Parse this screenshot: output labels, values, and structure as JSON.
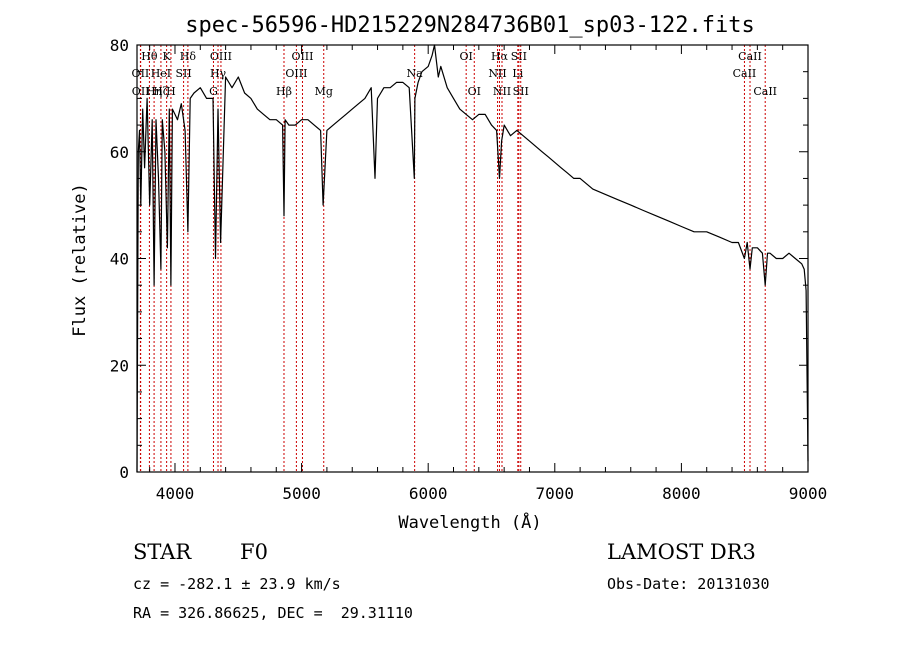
{
  "chart_data": {
    "type": "line",
    "title": "spec-56596-HD215229N284736B01_sp03-122.fits",
    "xlabel": "Wavelength (Å)",
    "ylabel": "Flux (relative)",
    "xlim": [
      3700,
      9000
    ],
    "ylim": [
      0,
      80
    ],
    "xticks": [
      4000,
      5000,
      6000,
      7000,
      8000,
      9000
    ],
    "yticks": [
      0,
      20,
      40,
      60,
      80
    ],
    "series": [
      {
        "name": "spectrum",
        "x": [
          3700,
          3710,
          3720,
          3730,
          3745,
          3760,
          3780,
          3800,
          3820,
          3835,
          3850,
          3870,
          3889,
          3900,
          3920,
          3940,
          3955,
          3968,
          3980,
          4000,
          4020,
          4050,
          4080,
          4102,
          4120,
          4150,
          4200,
          4250,
          4300,
          4320,
          4340,
          4360,
          4400,
          4450,
          4500,
          4550,
          4600,
          4650,
          4700,
          4750,
          4800,
          4850,
          4861,
          4870,
          4900,
          4950,
          5000,
          5050,
          5100,
          5150,
          5170,
          5200,
          5250,
          5300,
          5350,
          5400,
          5450,
          5500,
          5550,
          5580,
          5600,
          5650,
          5700,
          5750,
          5800,
          5850,
          5890,
          5895,
          5920,
          5950,
          6000,
          6030,
          6050,
          6080,
          6100,
          6150,
          6200,
          6250,
          6300,
          6350,
          6400,
          6450,
          6500,
          6540,
          6563,
          6580,
          6600,
          6650,
          6700,
          6750,
          6800,
          6850,
          6900,
          6950,
          7000,
          7050,
          7100,
          7150,
          7200,
          7300,
          7400,
          7500,
          7600,
          7700,
          7800,
          7900,
          8000,
          8100,
          8200,
          8300,
          8400,
          8450,
          8498,
          8520,
          8542,
          8560,
          8600,
          8640,
          8662,
          8680,
          8700,
          8750,
          8800,
          8850,
          8900,
          8950,
          8970,
          8985,
          9000
        ],
        "y": [
          0,
          60,
          64,
          50,
          68,
          57,
          70,
          50,
          66,
          35,
          66,
          55,
          38,
          66,
          60,
          42,
          68,
          35,
          68,
          67,
          66,
          69,
          64,
          45,
          70,
          71,
          72,
          70,
          70,
          40,
          68,
          43,
          74,
          72,
          74,
          71,
          70,
          68,
          67,
          66,
          66,
          65,
          48,
          66,
          65,
          65,
          66,
          66,
          65,
          64,
          50,
          64,
          65,
          66,
          67,
          68,
          69,
          70,
          72,
          55,
          70,
          72,
          72,
          73,
          73,
          72,
          55,
          70,
          73,
          75,
          76,
          78,
          80,
          74,
          76,
          72,
          70,
          68,
          67,
          66,
          67,
          67,
          65,
          64,
          55,
          62,
          65,
          63,
          64,
          63,
          62,
          61,
          60,
          59,
          58,
          57,
          56,
          55,
          55,
          53,
          52,
          51,
          50,
          49,
          48,
          47,
          46,
          45,
          45,
          44,
          43,
          43,
          40,
          43,
          38,
          42,
          42,
          41,
          35,
          41,
          41,
          40,
          40,
          41,
          40,
          39,
          38,
          34,
          2
        ]
      }
    ],
    "spectral_lines": [
      {
        "label": "Hθ",
        "wavelength": 3798,
        "row": 1
      },
      {
        "label": "OII",
        "wavelength": 3727,
        "row": 2
      },
      {
        "label": "OII",
        "wavelength": 3729,
        "row": 3
      },
      {
        "label": "HeI",
        "wavelength": 3889,
        "row": 2
      },
      {
        "label": "Hη",
        "wavelength": 3835,
        "row": 3
      },
      {
        "label": "Hζ",
        "wavelength": 3889,
        "row": 3
      },
      {
        "label": "K",
        "wavelength": 3934,
        "row": 1
      },
      {
        "label": "H",
        "wavelength": 3968,
        "row": 3
      },
      {
        "label": "SII",
        "wavelength": 4068,
        "row": 2
      },
      {
        "label": "Hδ",
        "wavelength": 4102,
        "row": 1
      },
      {
        "label": "OIII",
        "wavelength": 4363,
        "row": 1
      },
      {
        "label": "Hγ",
        "wavelength": 4340,
        "row": 2
      },
      {
        "label": "G",
        "wavelength": 4304,
        "row": 3
      },
      {
        "label": "Hβ",
        "wavelength": 4861,
        "row": 3
      },
      {
        "label": "OIII",
        "wavelength": 5007,
        "row": 1
      },
      {
        "label": "OIII",
        "wavelength": 4959,
        "row": 2
      },
      {
        "label": "Mg",
        "wavelength": 5175,
        "row": 3
      },
      {
        "label": "Na",
        "wavelength": 5893,
        "row": 2
      },
      {
        "label": "OI",
        "wavelength": 6300,
        "row": 1
      },
      {
        "label": "OI",
        "wavelength": 6364,
        "row": 3
      },
      {
        "label": "Hα",
        "wavelength": 6563,
        "row": 1
      },
      {
        "label": "NII",
        "wavelength": 6548,
        "row": 2
      },
      {
        "label": "NII",
        "wavelength": 6583,
        "row": 3
      },
      {
        "label": "SII",
        "wavelength": 6716,
        "row": 1
      },
      {
        "label": "Li",
        "wavelength": 6708,
        "row": 2
      },
      {
        "label": "SII",
        "wavelength": 6731,
        "row": 3
      },
      {
        "label": "CaII",
        "wavelength": 8542,
        "row": 1
      },
      {
        "label": "CaII",
        "wavelength": 8498,
        "row": 2
      },
      {
        "label": "CaII",
        "wavelength": 8662,
        "row": 3
      }
    ]
  },
  "info": {
    "class_label": "STAR",
    "subclass": "F0",
    "survey": "LAMOST DR3",
    "cz": "cz = -282.1 ± 23.9 km/s",
    "obs_date": "Obs-Date: 20131030",
    "coords": "RA = 326.86625, DEC =  29.31110"
  },
  "colors": {
    "spectrum": "#000000",
    "line_markers": "#cc0000"
  }
}
